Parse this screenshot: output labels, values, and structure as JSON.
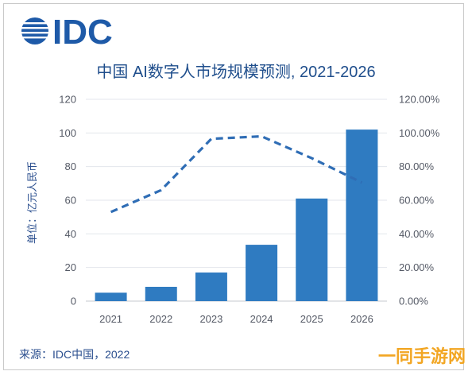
{
  "logo": {
    "text": "IDC",
    "color": "#1e5aa8"
  },
  "source": "来源：IDC中国，2022",
  "watermark": {
    "text": "一同手游网",
    "color": "#f2a623"
  },
  "colors": {
    "bar": "#2f7bc1",
    "line": "#2f6db5",
    "title": "#1f4e8c",
    "axis_text": "#555a66",
    "grid": "#e3e6ec"
  },
  "chart_data": {
    "type": "bar",
    "title": "中国 AI数字人市场规模预测, 2021-2026",
    "xlabel": "",
    "ylabel": "单位：亿元人民币",
    "categories": [
      "2021",
      "2022",
      "2023",
      "2024",
      "2025",
      "2026"
    ],
    "ylim": [
      0,
      120
    ],
    "yticks": [
      "0",
      "20",
      "40",
      "60",
      "80",
      "100",
      "120"
    ],
    "y2lim": [
      0,
      120
    ],
    "y2ticks": [
      "0.00%",
      "20.00%",
      "40.00%",
      "60.00%",
      "80.00%",
      "100.00%",
      "120.00%"
    ],
    "grid": true,
    "series": [
      {
        "type": "bar",
        "axis": "left",
        "values": [
          5,
          8.5,
          17,
          33.5,
          61,
          102
        ]
      },
      {
        "type": "line",
        "axis": "right",
        "style": "dashed",
        "values": [
          53,
          66,
          96.5,
          98,
          85,
          70.5
        ]
      }
    ]
  }
}
